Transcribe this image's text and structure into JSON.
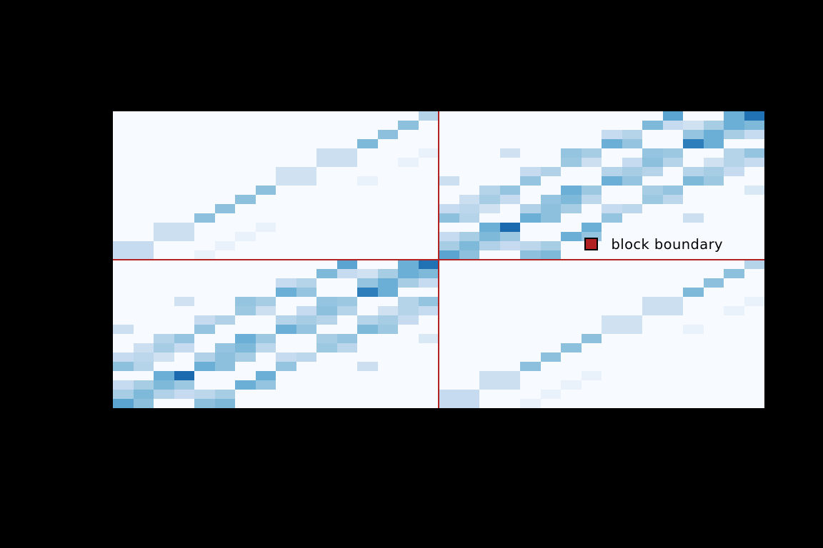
{
  "figure": {
    "background": "#000000",
    "plot_background": "#f7fbff"
  },
  "legend": {
    "label": "block boundary",
    "marker_fill": "#b22222",
    "marker_edge": "#000000"
  },
  "block_boundary": {
    "line_color": "#b22222",
    "col_index": 16,
    "row_index": 16
  },
  "chart_data": {
    "type": "heatmap",
    "title": "",
    "xlabel": "",
    "ylabel": "",
    "colormap": "Blues",
    "n_rows": 32,
    "n_cols": 32,
    "row_order": "top-to-bottom",
    "value_range": [
      0,
      1
    ],
    "legend_entries": [
      "block boundary"
    ],
    "block_boundary_after_index": 16,
    "grid": false,
    "matrix": [
      [
        0,
        0,
        0,
        0,
        0,
        0,
        0,
        0,
        0,
        0,
        0,
        0,
        0,
        0,
        0,
        0.3,
        0,
        0,
        0,
        0,
        0,
        0,
        0,
        0,
        0,
        0,
        0,
        0.55,
        0,
        0,
        0.5,
        0.75
      ],
      [
        0,
        0,
        0,
        0,
        0,
        0,
        0,
        0,
        0,
        0,
        0,
        0,
        0,
        0,
        0.42,
        0,
        0,
        0,
        0,
        0,
        0,
        0,
        0,
        0,
        0,
        0,
        0.45,
        0.25,
        0.2,
        0.35,
        0.5,
        0.45
      ],
      [
        0,
        0,
        0,
        0,
        0,
        0,
        0,
        0,
        0,
        0,
        0,
        0,
        0,
        0.42,
        0,
        0,
        0,
        0,
        0,
        0,
        0,
        0,
        0,
        0,
        0.25,
        0.3,
        0,
        0,
        0.4,
        0.5,
        0.35,
        0.25
      ],
      [
        0,
        0,
        0,
        0,
        0,
        0,
        0,
        0,
        0,
        0,
        0,
        0,
        0.45,
        0,
        0,
        0,
        0,
        0,
        0,
        0,
        0,
        0,
        0,
        0,
        0.5,
        0.4,
        0,
        0,
        0.7,
        0.5,
        0,
        0
      ],
      [
        0,
        0,
        0,
        0,
        0,
        0,
        0,
        0,
        0,
        0,
        0.22,
        0.22,
        0,
        0,
        0,
        0.07,
        0,
        0,
        0,
        0.2,
        0,
        0,
        0.4,
        0.35,
        0,
        0,
        0.4,
        0.38,
        0,
        0,
        0.3,
        0.4
      ],
      [
        0,
        0,
        0,
        0,
        0,
        0,
        0,
        0,
        0,
        0,
        0.22,
        0.22,
        0,
        0,
        0.07,
        0,
        0,
        0,
        0,
        0,
        0,
        0,
        0.38,
        0.22,
        0,
        0.25,
        0.42,
        0.3,
        0,
        0.2,
        0.3,
        0.25
      ],
      [
        0,
        0,
        0,
        0,
        0,
        0,
        0,
        0,
        0.2,
        0.2,
        0,
        0,
        0,
        0,
        0,
        0,
        0,
        0,
        0,
        0,
        0.25,
        0.32,
        0,
        0,
        0.3,
        0.35,
        0.3,
        0,
        0.3,
        0.35,
        0.25,
        0
      ],
      [
        0,
        0,
        0,
        0,
        0,
        0,
        0,
        0,
        0.2,
        0.2,
        0,
        0,
        0.07,
        0,
        0,
        0,
        0.22,
        0,
        0,
        0,
        0.4,
        0,
        0,
        0,
        0.5,
        0.4,
        0,
        0,
        0.45,
        0.38,
        0,
        0
      ],
      [
        0,
        0,
        0,
        0,
        0,
        0,
        0,
        0.42,
        0,
        0,
        0,
        0,
        0,
        0,
        0,
        0,
        0,
        0,
        0.3,
        0.4,
        0,
        0,
        0.5,
        0.38,
        0,
        0,
        0.35,
        0.4,
        0,
        0,
        0,
        0.15
      ],
      [
        0,
        0,
        0,
        0,
        0,
        0,
        0.42,
        0,
        0,
        0,
        0,
        0,
        0,
        0,
        0,
        0,
        0,
        0.22,
        0.35,
        0.25,
        0,
        0.4,
        0.45,
        0.28,
        0,
        0,
        0.38,
        0.28,
        0,
        0,
        0,
        0
      ],
      [
        0,
        0,
        0,
        0,
        0,
        0.42,
        0,
        0,
        0,
        0,
        0,
        0,
        0,
        0,
        0,
        0,
        0.25,
        0.28,
        0.2,
        0,
        0.32,
        0.42,
        0.35,
        0,
        0.25,
        0.28,
        0,
        0,
        0,
        0,
        0,
        0
      ],
      [
        0,
        0,
        0,
        0,
        0.42,
        0,
        0,
        0,
        0,
        0,
        0,
        0,
        0,
        0,
        0,
        0,
        0.42,
        0.3,
        0,
        0,
        0.5,
        0.42,
        0,
        0,
        0.4,
        0,
        0,
        0,
        0.22,
        0,
        0,
        0
      ],
      [
        0,
        0,
        0.22,
        0.22,
        0,
        0,
        0,
        0.07,
        0,
        0,
        0,
        0,
        0,
        0,
        0,
        0,
        0,
        0,
        0.5,
        0.78,
        0,
        0,
        0,
        0.5,
        0,
        0,
        0,
        0,
        0,
        0,
        0,
        0
      ],
      [
        0,
        0,
        0.22,
        0.22,
        0,
        0,
        0.07,
        0,
        0,
        0,
        0,
        0,
        0,
        0,
        0,
        0,
        0.25,
        0.35,
        0.45,
        0.38,
        0,
        0,
        0.5,
        0.4,
        0,
        0,
        0,
        0,
        0,
        0,
        0,
        0
      ],
      [
        0.25,
        0.25,
        0,
        0,
        0,
        0.07,
        0,
        0,
        0,
        0,
        0,
        0,
        0,
        0,
        0,
        0,
        0.35,
        0.45,
        0.32,
        0.25,
        0.28,
        0.35,
        0,
        0,
        0,
        0,
        0,
        0,
        0,
        0,
        0,
        0
      ],
      [
        0.25,
        0.25,
        0,
        0,
        0.07,
        0,
        0,
        0,
        0,
        0,
        0,
        0,
        0,
        0,
        0,
        0,
        0.55,
        0.42,
        0,
        0,
        0.42,
        0.45,
        0,
        0,
        0,
        0,
        0,
        0,
        0,
        0,
        0,
        0
      ],
      [
        0,
        0,
        0,
        0,
        0,
        0,
        0,
        0,
        0,
        0,
        0,
        0.55,
        0,
        0,
        0.5,
        0.75,
        0,
        0,
        0,
        0,
        0,
        0,
        0,
        0,
        0,
        0,
        0,
        0,
        0,
        0,
        0,
        0.3
      ],
      [
        0,
        0,
        0,
        0,
        0,
        0,
        0,
        0,
        0,
        0,
        0.45,
        0.25,
        0.2,
        0.35,
        0.5,
        0.45,
        0,
        0,
        0,
        0,
        0,
        0,
        0,
        0,
        0,
        0,
        0,
        0,
        0,
        0,
        0.42,
        0
      ],
      [
        0,
        0,
        0,
        0,
        0,
        0,
        0,
        0,
        0.25,
        0.3,
        0,
        0,
        0.4,
        0.5,
        0.35,
        0.25,
        0,
        0,
        0,
        0,
        0,
        0,
        0,
        0,
        0,
        0,
        0,
        0,
        0,
        0.42,
        0,
        0
      ],
      [
        0,
        0,
        0,
        0,
        0,
        0,
        0,
        0,
        0.5,
        0.4,
        0,
        0,
        0.7,
        0.5,
        0,
        0,
        0,
        0,
        0,
        0,
        0,
        0,
        0,
        0,
        0,
        0,
        0,
        0,
        0.45,
        0,
        0,
        0
      ],
      [
        0,
        0,
        0,
        0.2,
        0,
        0,
        0.4,
        0.35,
        0,
        0,
        0.4,
        0.38,
        0,
        0,
        0.3,
        0.4,
        0,
        0,
        0,
        0,
        0,
        0,
        0,
        0,
        0,
        0,
        0.22,
        0.22,
        0,
        0,
        0,
        0.07
      ],
      [
        0,
        0,
        0,
        0,
        0,
        0,
        0.38,
        0.22,
        0,
        0.25,
        0.42,
        0.3,
        0,
        0.2,
        0.3,
        0.25,
        0,
        0,
        0,
        0,
        0,
        0,
        0,
        0,
        0,
        0,
        0.22,
        0.22,
        0,
        0,
        0.07,
        0
      ],
      [
        0,
        0,
        0,
        0,
        0.25,
        0.32,
        0,
        0,
        0.3,
        0.35,
        0.3,
        0,
        0.3,
        0.35,
        0.25,
        0,
        0,
        0,
        0,
        0,
        0,
        0,
        0,
        0,
        0.2,
        0.2,
        0,
        0,
        0,
        0,
        0,
        0
      ],
      [
        0.22,
        0,
        0,
        0,
        0.4,
        0,
        0,
        0,
        0.5,
        0.4,
        0,
        0,
        0.45,
        0.38,
        0,
        0,
        0,
        0,
        0,
        0,
        0,
        0,
        0,
        0,
        0.2,
        0.2,
        0,
        0,
        0.07,
        0,
        0,
        0
      ],
      [
        0,
        0,
        0.3,
        0.4,
        0,
        0,
        0.5,
        0.38,
        0,
        0,
        0.35,
        0.4,
        0,
        0,
        0,
        0.15,
        0,
        0,
        0,
        0,
        0,
        0,
        0,
        0.42,
        0,
        0,
        0,
        0,
        0,
        0,
        0,
        0
      ],
      [
        0,
        0.22,
        0.35,
        0.25,
        0,
        0.4,
        0.45,
        0.28,
        0,
        0,
        0.38,
        0.28,
        0,
        0,
        0,
        0,
        0,
        0,
        0,
        0,
        0,
        0,
        0.42,
        0,
        0,
        0,
        0,
        0,
        0,
        0,
        0,
        0
      ],
      [
        0.25,
        0.28,
        0.2,
        0,
        0.32,
        0.42,
        0.35,
        0,
        0.25,
        0.28,
        0,
        0,
        0,
        0,
        0,
        0,
        0,
        0,
        0,
        0,
        0,
        0.42,
        0,
        0,
        0,
        0,
        0,
        0,
        0,
        0,
        0,
        0
      ],
      [
        0.42,
        0.3,
        0,
        0,
        0.5,
        0.42,
        0,
        0,
        0.4,
        0,
        0,
        0,
        0.22,
        0,
        0,
        0,
        0,
        0,
        0,
        0,
        0.42,
        0,
        0,
        0,
        0,
        0,
        0,
        0,
        0,
        0,
        0,
        0
      ],
      [
        0,
        0,
        0.5,
        0.78,
        0,
        0,
        0,
        0.5,
        0,
        0,
        0,
        0,
        0,
        0,
        0,
        0,
        0,
        0,
        0.22,
        0.22,
        0,
        0,
        0,
        0.07,
        0,
        0,
        0,
        0,
        0,
        0,
        0,
        0
      ],
      [
        0.25,
        0.35,
        0.45,
        0.38,
        0,
        0,
        0.5,
        0.4,
        0,
        0,
        0,
        0,
        0,
        0,
        0,
        0,
        0,
        0,
        0.22,
        0.22,
        0,
        0,
        0.07,
        0,
        0,
        0,
        0,
        0,
        0,
        0,
        0,
        0
      ],
      [
        0.35,
        0.45,
        0.32,
        0.25,
        0.28,
        0.35,
        0,
        0,
        0,
        0,
        0,
        0,
        0,
        0,
        0,
        0,
        0.25,
        0.25,
        0,
        0,
        0,
        0.07,
        0,
        0,
        0,
        0,
        0,
        0,
        0,
        0,
        0,
        0
      ],
      [
        0.55,
        0.42,
        0,
        0,
        0.42,
        0.45,
        0,
        0,
        0,
        0,
        0,
        0,
        0,
        0,
        0,
        0,
        0.25,
        0.25,
        0,
        0,
        0.07,
        0,
        0,
        0,
        0,
        0,
        0,
        0,
        0,
        0,
        0,
        0
      ]
    ]
  }
}
